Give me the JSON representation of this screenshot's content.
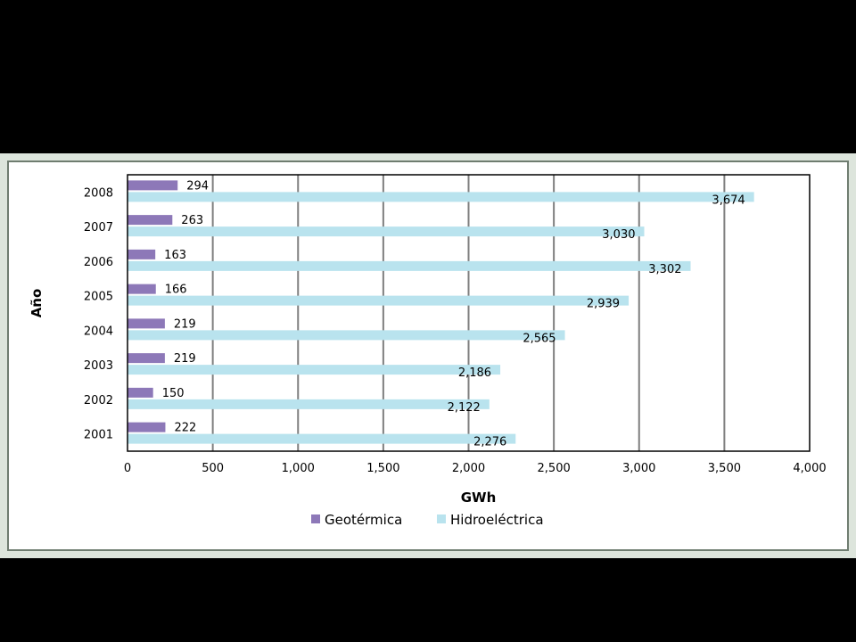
{
  "chart_data": {
    "type": "bar",
    "orientation": "horizontal",
    "categories": [
      "2001",
      "2002",
      "2003",
      "2004",
      "2005",
      "2006",
      "2007",
      "2008"
    ],
    "series": [
      {
        "name": "Geotérmica",
        "values": [
          222,
          150,
          219,
          219,
          166,
          163,
          263,
          294
        ],
        "labels": [
          "222",
          "150",
          "219",
          "219",
          "166",
          "163",
          "263",
          "294"
        ]
      },
      {
        "name": "Hidroeléctrica",
        "values": [
          2276,
          2122,
          2186,
          2565,
          2939,
          3302,
          3030,
          3674
        ],
        "labels": [
          "2,276",
          "2,122",
          "2,186",
          "2,565",
          "2,939",
          "3,302",
          "3,030",
          "3,674"
        ]
      }
    ],
    "xlabel": "GWh",
    "ylabel": "Año",
    "xlim": [
      0,
      4000
    ],
    "xticks": [
      0,
      500,
      1000,
      1500,
      2000,
      2500,
      3000,
      3500,
      4000
    ],
    "xtick_labels": [
      "0",
      "500",
      "1,000",
      "1,500",
      "2,000",
      "2,500",
      "3,000",
      "3,500",
      "4,000"
    ],
    "grid": "vertical",
    "legend": "bottom",
    "colors": {
      "Geotérmica": "#8d78b8",
      "Hidroeléctrica": "#b9e3ee",
      "gridline": "#7f7f7f",
      "panel": "#dde5dc",
      "frame": "#6f7d70"
    }
  }
}
